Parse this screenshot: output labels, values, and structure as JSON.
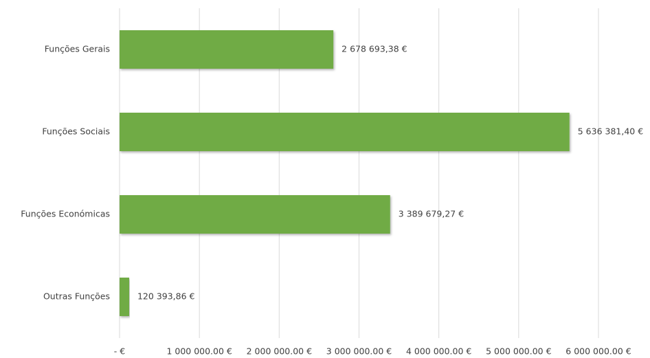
{
  "chart_data": {
    "type": "bar",
    "orientation": "horizontal",
    "categories": [
      "Funções Gerais",
      "Funções Sociais",
      "Funções Económicas",
      "Outras Funções"
    ],
    "values": [
      2678693.38,
      5636381.4,
      3389679.27,
      120393.86
    ],
    "value_labels": [
      "2 678 693,38 €",
      "5 636 381,40 €",
      "3 389 679,27 €",
      "120 393,86 €"
    ],
    "color": "#6fab45",
    "xlim": [
      0,
      6000000
    ],
    "xticks": [
      {
        "value": 0,
        "label": "-  €"
      },
      {
        "value": 1000000,
        "label": "1 000 000.00 €"
      },
      {
        "value": 2000000,
        "label": "2 000 000.00 €"
      },
      {
        "value": 3000000,
        "label": "3 000 000.00 €"
      },
      {
        "value": 4000000,
        "label": "4 000 000.00 €"
      },
      {
        "value": 5000000,
        "label": "5 000 000.00 €"
      },
      {
        "value": 6000000,
        "label": "6 000 000.00 €"
      }
    ],
    "grid": true
  }
}
